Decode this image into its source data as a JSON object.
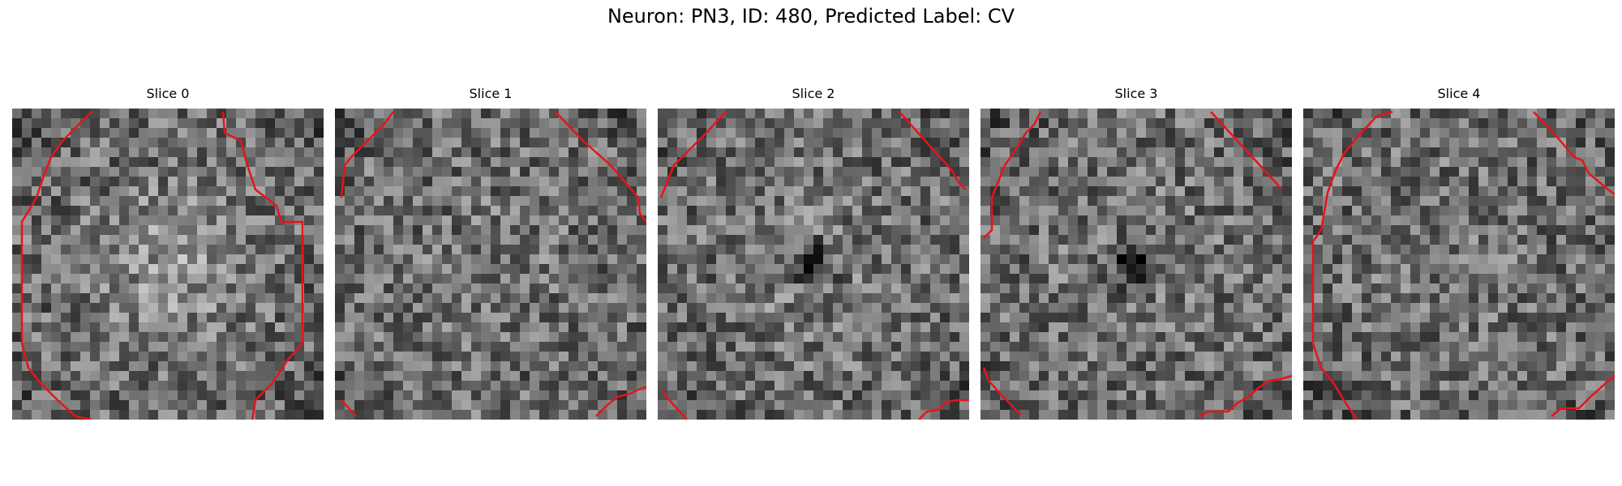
{
  "figure": {
    "title": "Neuron: PN3, ID: 480, Predicted Label: CV"
  },
  "colors": {
    "contour": "#e8131a",
    "background": "#ffffff"
  },
  "grid_size": 32,
  "panels": [
    {
      "title": "Slice 0",
      "dark_blob": 0.0,
      "bright_center": 0.18
    },
    {
      "title": "Slice 1",
      "dark_blob": 0.12,
      "bright_center": 0.05
    },
    {
      "title": "Slice 2",
      "dark_blob": 0.28,
      "bright_center": 0.08
    },
    {
      "title": "Slice 3",
      "dark_blob": 0.34,
      "bright_center": 0.06
    },
    {
      "title": "Slice 4",
      "dark_blob": 0.0,
      "bright_center": 0.04
    }
  ]
}
